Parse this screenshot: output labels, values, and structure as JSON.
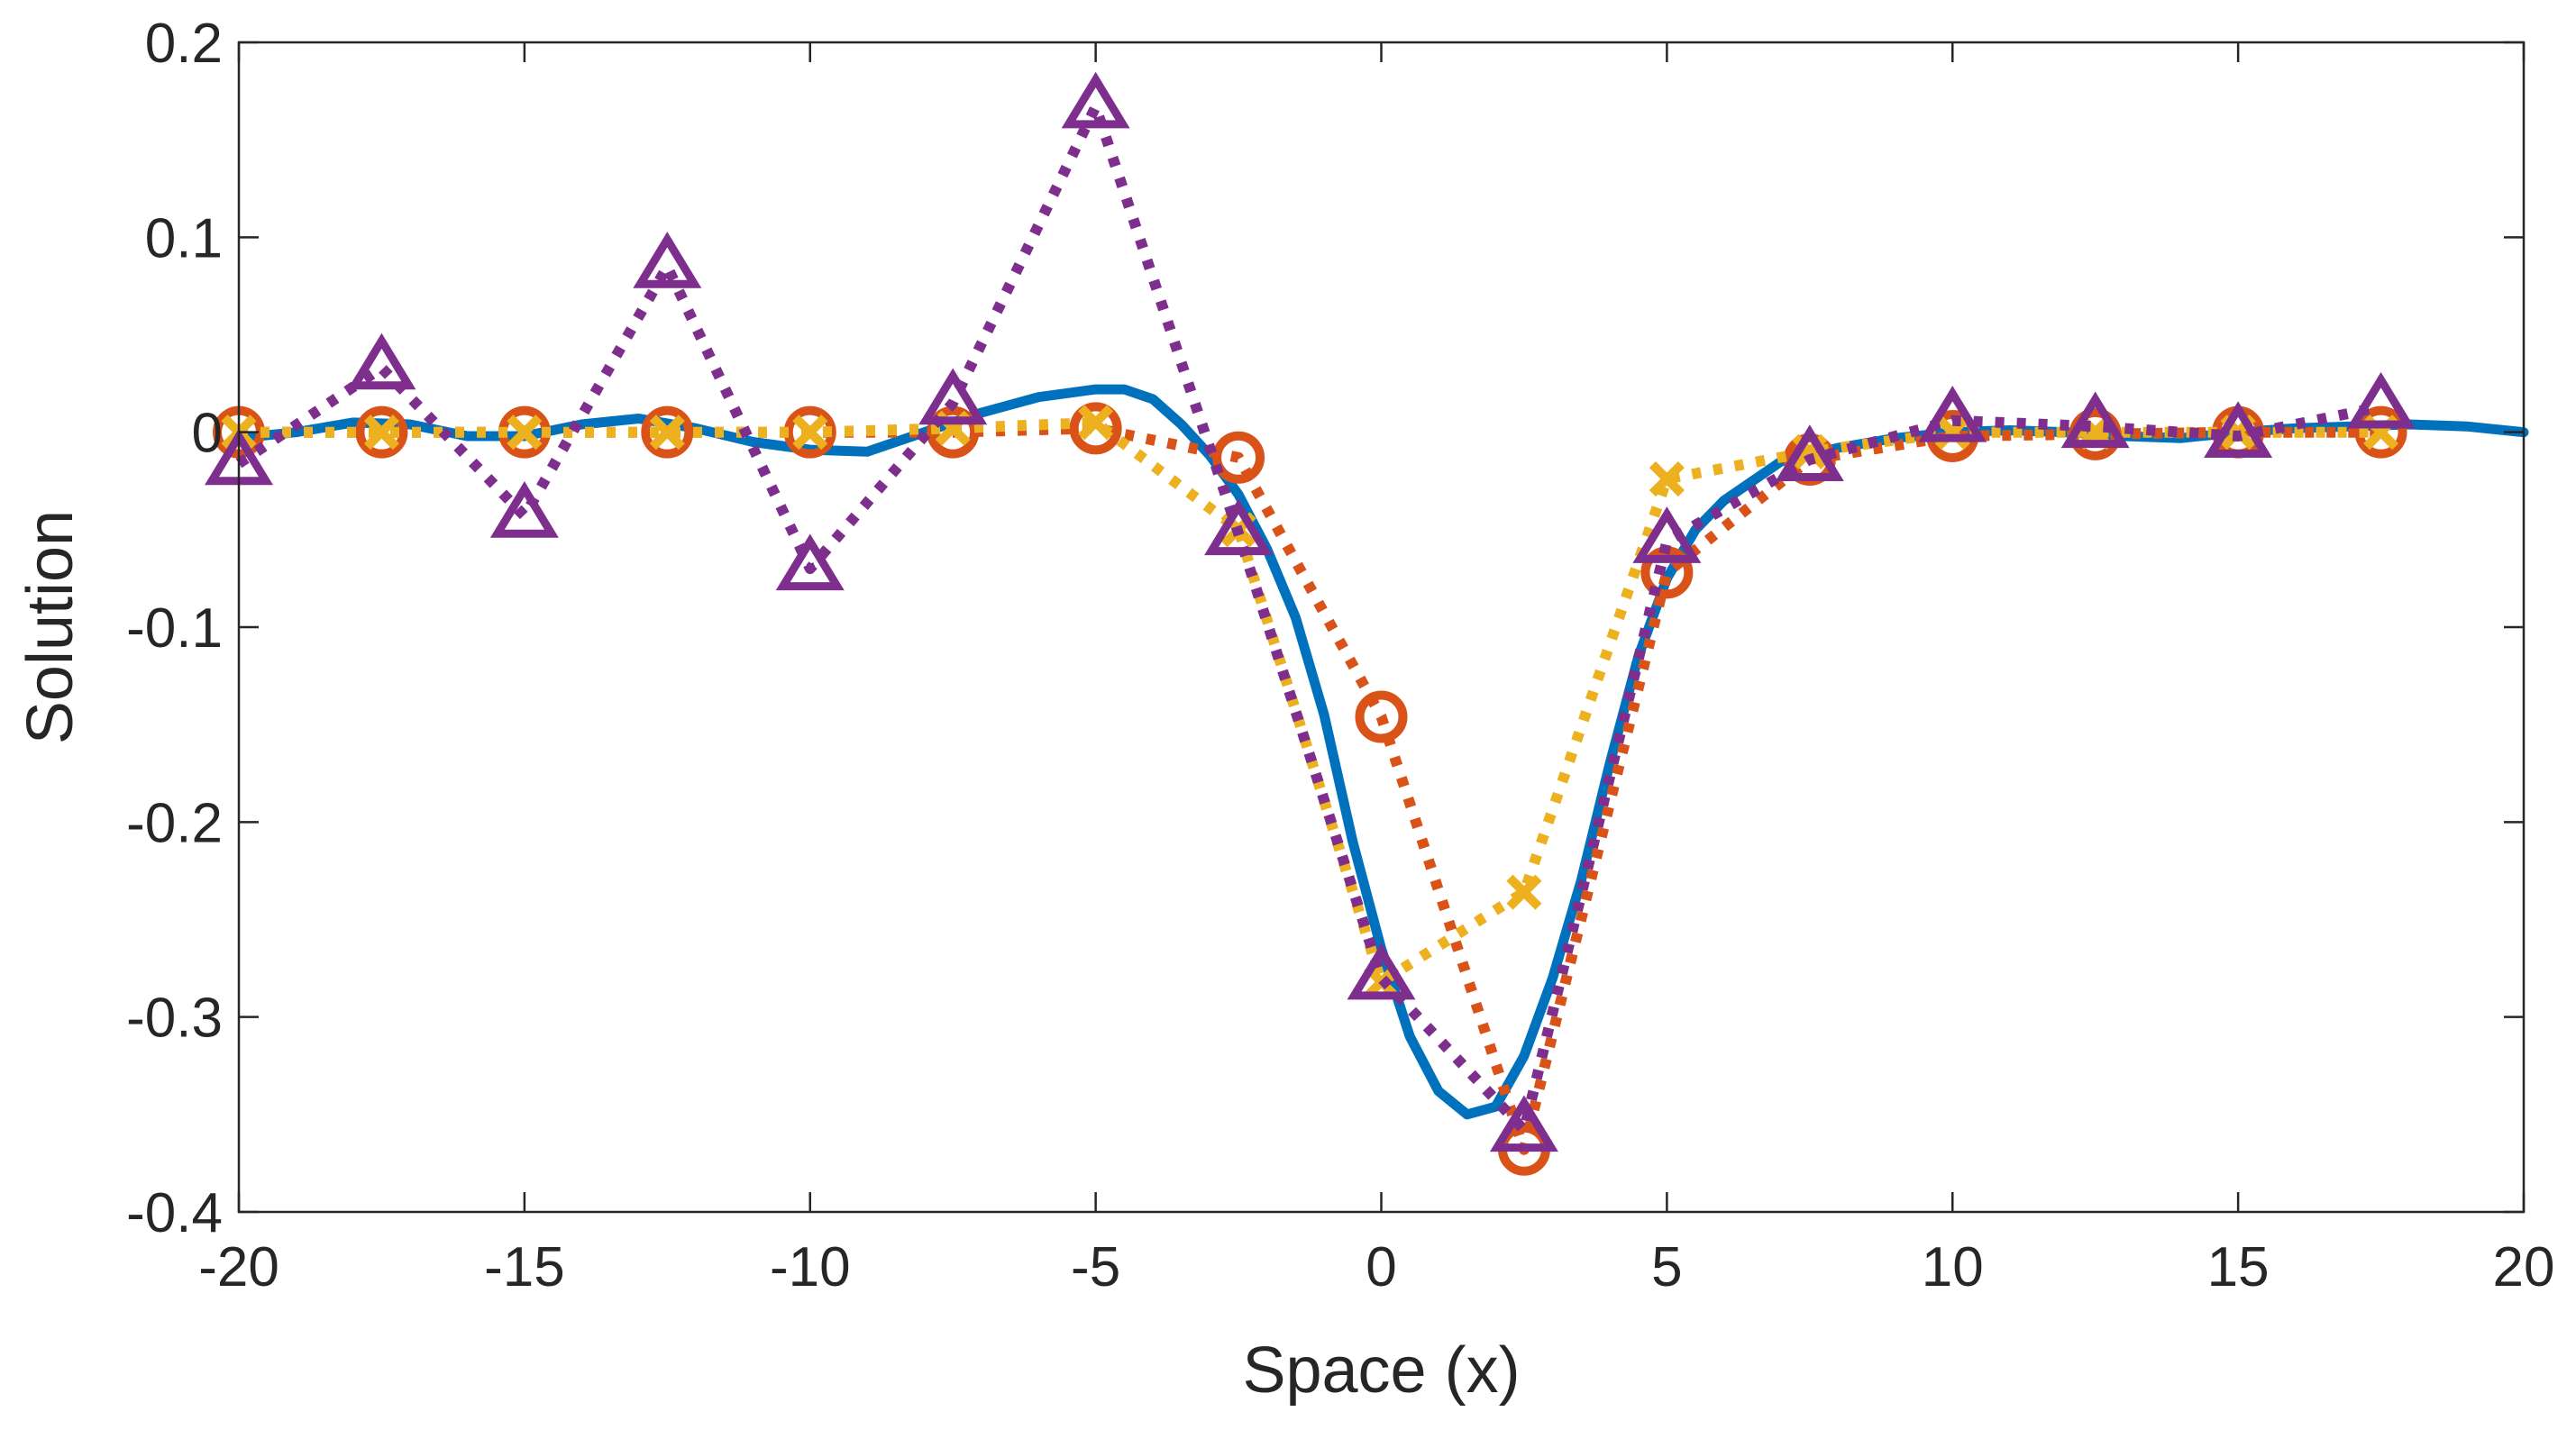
{
  "chart_data": {
    "type": "line",
    "title": "",
    "xlabel": "Space (x)",
    "ylabel": "Solution",
    "xlim": [
      -20,
      20
    ],
    "ylim": [
      -0.4,
      0.2
    ],
    "xticks": [
      -20,
      -15,
      -10,
      -5,
      0,
      5,
      10,
      15,
      20
    ],
    "xtick_labels": [
      "-20",
      "-15",
      "-10",
      "-5",
      "0",
      "5",
      "10",
      "15",
      "20"
    ],
    "yticks": [
      0.2,
      0.1,
      0,
      -0.1,
      -0.2,
      -0.3,
      -0.4
    ],
    "ytick_labels": [
      "0.2",
      "0.1",
      "0",
      "-0.1",
      "-0.2",
      "-0.3",
      "-0.4"
    ],
    "grid": false,
    "legend": "none",
    "series": [
      {
        "name": "solid",
        "style": "solid",
        "marker": "none",
        "color": "#0072BD",
        "x": [
          -20,
          -19,
          -18,
          -17,
          -16,
          -15,
          -14,
          -13,
          -12,
          -11,
          -10,
          -9,
          -8,
          -7,
          -6,
          -5,
          -4.5,
          -4,
          -3.5,
          -3,
          -2.5,
          -2,
          -1.5,
          -1,
          -0.5,
          0,
          0.5,
          1,
          1.5,
          2,
          2.5,
          3,
          3.5,
          4,
          4.5,
          5,
          5.5,
          6,
          6.5,
          7,
          8,
          9,
          10,
          11,
          12,
          13,
          14,
          15,
          16,
          17,
          18,
          19,
          20
        ],
        "y": [
          -0.003,
          0.0,
          0.005,
          0.004,
          -0.002,
          -0.002,
          0.004,
          0.007,
          0.002,
          -0.005,
          -0.009,
          -0.01,
          0.0,
          0.01,
          0.018,
          0.022,
          0.022,
          0.017,
          0.004,
          -0.012,
          -0.032,
          -0.06,
          -0.095,
          -0.145,
          -0.21,
          -0.265,
          -0.31,
          -0.338,
          -0.35,
          -0.346,
          -0.32,
          -0.28,
          -0.23,
          -0.17,
          -0.115,
          -0.075,
          -0.05,
          -0.035,
          -0.025,
          -0.015,
          -0.008,
          -0.003,
          0.0,
          0.001,
          0.0,
          -0.002,
          -0.003,
          0.0,
          0.002,
          0.003,
          0.004,
          0.003,
          0.0
        ]
      },
      {
        "name": "circles",
        "style": "dotted",
        "marker": "circle",
        "color": "#D95319",
        "x": [
          -20,
          -17.5,
          -15,
          -12.5,
          -10,
          -7.5,
          -5,
          -2.5,
          0,
          2.5,
          5,
          7.5,
          10,
          12.5,
          15,
          17.5
        ],
        "y": [
          0.0,
          0.0,
          0.0,
          0.0,
          0.0,
          0.0,
          0.002,
          -0.013,
          -0.146,
          -0.368,
          -0.072,
          -0.014,
          -0.002,
          -0.001,
          0.0,
          0.0
        ]
      },
      {
        "name": "crosses",
        "style": "dotted",
        "marker": "x",
        "color": "#EDB120",
        "x": [
          -20,
          -17.5,
          -15,
          -12.5,
          -10,
          -7.5,
          -5,
          -2.5,
          0,
          2.5,
          5,
          7.5,
          10,
          12.5,
          15,
          17.5
        ],
        "y": [
          0.0,
          0.0,
          0.0,
          0.0,
          0.0,
          0.002,
          0.005,
          -0.05,
          -0.282,
          -0.236,
          -0.024,
          -0.01,
          0.0,
          0.0,
          0.0,
          0.0
        ]
      },
      {
        "name": "triangles",
        "style": "dotted",
        "marker": "triangle",
        "color": "#7E2F8E",
        "x": [
          -20,
          -17.5,
          -15,
          -12.5,
          -10,
          -7.5,
          -5,
          -2.5,
          0,
          2.5,
          5,
          7.5,
          10,
          12.5,
          15,
          17.5
        ],
        "y": [
          -0.016,
          0.033,
          -0.043,
          0.085,
          -0.07,
          0.015,
          0.167,
          -0.052,
          -0.28,
          -0.358,
          -0.056,
          -0.014,
          0.006,
          0.003,
          -0.002,
          0.013
        ]
      }
    ]
  }
}
